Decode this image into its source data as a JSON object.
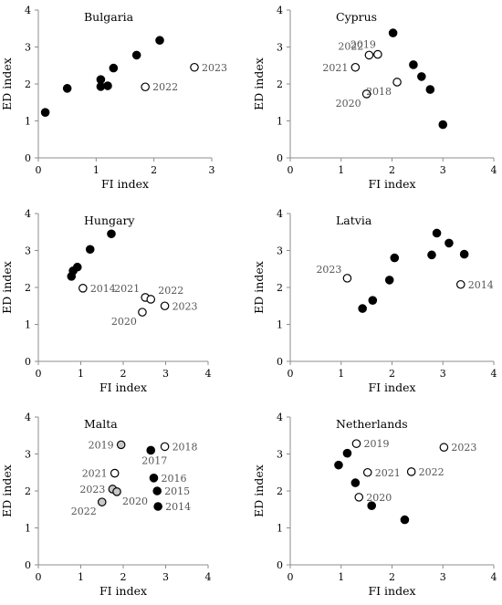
{
  "chart_data": [
    {
      "type": "scatter",
      "title": "Bulgaria",
      "xlabel": "FI index",
      "ylabel": "ED index",
      "xlim": [
        0,
        3
      ],
      "ylim": [
        0,
        4
      ],
      "xticks": [
        "0",
        "1",
        "2",
        "3"
      ],
      "yticks": [
        "0",
        "1",
        "2",
        "3",
        "4"
      ],
      "points": [
        {
          "x": 0.12,
          "y": 1.23,
          "fill": "#000000"
        },
        {
          "x": 0.5,
          "y": 1.88,
          "fill": "#000000"
        },
        {
          "x": 1.08,
          "y": 1.93,
          "fill": "#000000"
        },
        {
          "x": 1.08,
          "y": 2.12,
          "fill": "#000000"
        },
        {
          "x": 1.2,
          "y": 1.95,
          "fill": "#000000"
        },
        {
          "x": 1.3,
          "y": 2.43,
          "fill": "#000000"
        },
        {
          "x": 1.7,
          "y": 2.78,
          "fill": "#000000"
        },
        {
          "x": 2.1,
          "y": 3.18,
          "fill": "#000000"
        },
        {
          "x": 1.85,
          "y": 1.92,
          "fill": "#ffffff",
          "label": "2022",
          "pos": "right"
        },
        {
          "x": 2.7,
          "y": 2.45,
          "fill": "#ffffff",
          "label": "2023",
          "pos": "right"
        }
      ]
    },
    {
      "type": "scatter",
      "title": "Cyprus",
      "xlabel": "FI index",
      "ylabel": "ED index",
      "xlim": [
        0,
        4
      ],
      "ylim": [
        0,
        4
      ],
      "xticks": [
        "0",
        "1",
        "2",
        "3",
        "4"
      ],
      "yticks": [
        "0",
        "1",
        "2",
        "3",
        "4"
      ],
      "points": [
        {
          "x": 2.02,
          "y": 3.38,
          "fill": "#000000"
        },
        {
          "x": 2.42,
          "y": 2.52,
          "fill": "#000000"
        },
        {
          "x": 2.58,
          "y": 2.2,
          "fill": "#000000"
        },
        {
          "x": 2.75,
          "y": 1.85,
          "fill": "#000000"
        },
        {
          "x": 3.0,
          "y": 0.9,
          "fill": "#000000"
        },
        {
          "x": 1.28,
          "y": 2.45,
          "fill": "#ffffff",
          "label": "2021",
          "pos": "left"
        },
        {
          "x": 1.55,
          "y": 2.78,
          "fill": "#ffffff",
          "label": "2022",
          "pos": "upleft"
        },
        {
          "x": 1.72,
          "y": 2.8,
          "fill": "#ffffff",
          "label": "2019",
          "pos": "upleft2"
        },
        {
          "x": 1.5,
          "y": 1.73,
          "fill": "#ffffff",
          "label": "2020",
          "pos": "downleft"
        },
        {
          "x": 2.1,
          "y": 2.05,
          "fill": "#ffffff",
          "label": "2018",
          "pos": "downleft"
        }
      ]
    },
    {
      "type": "scatter",
      "title": "Hungary",
      "xlabel": "FI index",
      "ylabel": "ED index",
      "xlim": [
        0,
        4
      ],
      "ylim": [
        0,
        4
      ],
      "xticks": [
        "0",
        "1",
        "2",
        "3",
        "4"
      ],
      "yticks": [
        "0",
        "1",
        "2",
        "3",
        "4"
      ],
      "points": [
        {
          "x": 0.78,
          "y": 2.3,
          "fill": "#000000"
        },
        {
          "x": 0.82,
          "y": 2.45,
          "fill": "#000000"
        },
        {
          "x": 0.92,
          "y": 2.55,
          "fill": "#000000"
        },
        {
          "x": 1.22,
          "y": 3.03,
          "fill": "#000000"
        },
        {
          "x": 1.72,
          "y": 3.45,
          "fill": "#000000"
        },
        {
          "x": 1.05,
          "y": 1.98,
          "fill": "#ffffff",
          "label": "2014",
          "pos": "right"
        },
        {
          "x": 2.52,
          "y": 1.73,
          "fill": "#ffffff",
          "label": "2021",
          "pos": "upleft"
        },
        {
          "x": 2.65,
          "y": 1.68,
          "fill": "#ffffff",
          "label": "2022",
          "pos": "upright"
        },
        {
          "x": 2.98,
          "y": 1.5,
          "fill": "#ffffff",
          "label": "2023",
          "pos": "right"
        },
        {
          "x": 2.45,
          "y": 1.33,
          "fill": "#ffffff",
          "label": "2020",
          "pos": "downleft"
        }
      ]
    },
    {
      "type": "scatter",
      "title": "Latvia",
      "xlabel": "FI index",
      "ylabel": "ED index",
      "xlim": [
        0,
        4
      ],
      "ylim": [
        0,
        4
      ],
      "xticks": [
        "0",
        "1",
        "2",
        "3",
        "4"
      ],
      "yticks": [
        "0",
        "1",
        "2",
        "3",
        "4"
      ],
      "points": [
        {
          "x": 1.42,
          "y": 1.43,
          "fill": "#000000"
        },
        {
          "x": 1.62,
          "y": 1.65,
          "fill": "#000000"
        },
        {
          "x": 1.95,
          "y": 2.2,
          "fill": "#000000"
        },
        {
          "x": 2.05,
          "y": 2.8,
          "fill": "#000000"
        },
        {
          "x": 2.78,
          "y": 2.88,
          "fill": "#000000"
        },
        {
          "x": 2.88,
          "y": 3.47,
          "fill": "#000000"
        },
        {
          "x": 3.12,
          "y": 3.2,
          "fill": "#000000"
        },
        {
          "x": 3.42,
          "y": 2.9,
          "fill": "#000000"
        },
        {
          "x": 1.12,
          "y": 2.25,
          "fill": "#ffffff",
          "label": "2023",
          "pos": "upleft"
        },
        {
          "x": 3.35,
          "y": 2.08,
          "fill": "#ffffff",
          "label": "2014",
          "pos": "right"
        }
      ]
    },
    {
      "type": "scatter",
      "title": "Malta",
      "xlabel": "FI index",
      "ylabel": "ED index",
      "xlim": [
        0,
        4
      ],
      "ylim": [
        0,
        4
      ],
      "xticks": [
        "0",
        "1",
        "2",
        "3",
        "4"
      ],
      "yticks": [
        "0",
        "1",
        "2",
        "3",
        "4"
      ],
      "points": [
        {
          "x": 1.95,
          "y": 3.25,
          "fill": "#c8c8c8",
          "label": "2019",
          "pos": "left"
        },
        {
          "x": 2.65,
          "y": 3.1,
          "fill": "#000000",
          "label": "2017",
          "pos": "below"
        },
        {
          "x": 2.98,
          "y": 3.2,
          "fill": "#ffffff",
          "label": "2018",
          "pos": "right"
        },
        {
          "x": 1.8,
          "y": 2.48,
          "fill": "#ffffff",
          "label": "2021",
          "pos": "left"
        },
        {
          "x": 2.72,
          "y": 2.35,
          "fill": "#000000",
          "label": "2016",
          "pos": "right"
        },
        {
          "x": 1.75,
          "y": 2.05,
          "fill": "#c8c8c8",
          "label": "2023",
          "pos": "left"
        },
        {
          "x": 1.85,
          "y": 1.98,
          "fill": "#c8c8c8",
          "label": "2020",
          "pos": "downright"
        },
        {
          "x": 2.8,
          "y": 2.0,
          "fill": "#000000",
          "label": "2015",
          "pos": "right"
        },
        {
          "x": 1.5,
          "y": 1.7,
          "fill": "#c8c8c8",
          "label": "2022",
          "pos": "downleft"
        },
        {
          "x": 2.82,
          "y": 1.58,
          "fill": "#000000",
          "label": "2014",
          "pos": "right"
        }
      ]
    },
    {
      "type": "scatter",
      "title": "Netherlands",
      "xlabel": "FI index",
      "ylabel": "ED index",
      "xlim": [
        0,
        4
      ],
      "ylim": [
        0,
        4
      ],
      "xticks": [
        "0",
        "1",
        "2",
        "3",
        "4"
      ],
      "yticks": [
        "0",
        "1",
        "2",
        "3",
        "4"
      ],
      "points": [
        {
          "x": 0.95,
          "y": 2.7,
          "fill": "#000000"
        },
        {
          "x": 1.12,
          "y": 3.02,
          "fill": "#000000"
        },
        {
          "x": 1.28,
          "y": 2.22,
          "fill": "#000000"
        },
        {
          "x": 1.6,
          "y": 1.6,
          "fill": "#000000"
        },
        {
          "x": 2.25,
          "y": 1.22,
          "fill": "#000000"
        },
        {
          "x": 1.3,
          "y": 3.28,
          "fill": "#ffffff",
          "label": "2019",
          "pos": "right"
        },
        {
          "x": 1.52,
          "y": 2.5,
          "fill": "#ffffff",
          "label": "2021",
          "pos": "right"
        },
        {
          "x": 2.38,
          "y": 2.52,
          "fill": "#ffffff",
          "label": "2022",
          "pos": "right"
        },
        {
          "x": 1.35,
          "y": 1.83,
          "fill": "#ffffff",
          "label": "2020",
          "pos": "right"
        },
        {
          "x": 3.02,
          "y": 3.18,
          "fill": "#ffffff",
          "label": "2023",
          "pos": "right"
        }
      ]
    }
  ]
}
